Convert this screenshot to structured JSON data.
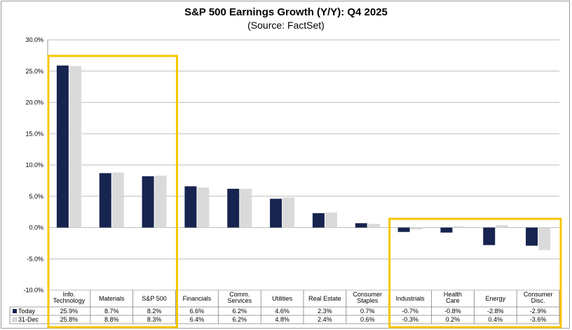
{
  "chart_data": {
    "type": "bar",
    "title": "S&P 500 Earnings Growth (Y/Y): Q4 2025",
    "subtitle": "(Source: FactSet)",
    "xlabel": "",
    "ylabel": "",
    "ylim": [
      -10,
      30
    ],
    "y_ticks": [
      30,
      25,
      20,
      15,
      10,
      5,
      0,
      -5,
      -10
    ],
    "y_tick_labels": [
      "30.0%",
      "25.0%",
      "20.0%",
      "15.0%",
      "10.0%",
      "5.0%",
      "0.0%",
      "-5.0%",
      "-10.0%"
    ],
    "grid": true,
    "categories": [
      [
        "Info.",
        "Technology"
      ],
      [
        "Materials"
      ],
      [
        "S&P 500"
      ],
      [
        "Financials"
      ],
      [
        "Comm.",
        "Services"
      ],
      [
        "Utilities"
      ],
      [
        "Real Estate"
      ],
      [
        "Consumer",
        "Staples"
      ],
      [
        "Industrials"
      ],
      [
        "Health",
        "Care"
      ],
      [
        "Energy"
      ],
      [
        "Consumer",
        "Disc."
      ]
    ],
    "series": [
      {
        "name": "Today",
        "color": "#17244f",
        "values": [
          25.9,
          8.7,
          8.2,
          6.6,
          6.2,
          4.6,
          2.3,
          0.7,
          -0.7,
          -0.8,
          -2.8,
          -2.9
        ],
        "labels": [
          "25.9%",
          "8.7%",
          "8.2%",
          "6.6%",
          "6.2%",
          "4.6%",
          "2.3%",
          "0.7%",
          "-0.7%",
          "-0.8%",
          "-2.8%",
          "-2.9%"
        ]
      },
      {
        "name": "31-Dec",
        "color": "#dadada",
        "values": [
          25.8,
          8.8,
          8.3,
          6.4,
          6.2,
          4.8,
          2.4,
          0.6,
          -0.3,
          0.2,
          0.4,
          -3.6
        ],
        "labels": [
          "25.8%",
          "8.8%",
          "8.3%",
          "6.4%",
          "6.2%",
          "4.8%",
          "2.4%",
          "0.6%",
          "-0.3%",
          "0.2%",
          "0.4%",
          "-3.6%"
        ]
      }
    ],
    "highlights": [
      {
        "from_category": 0,
        "to_category": 2,
        "color": "#f7c600"
      },
      {
        "from_category": 8,
        "to_category": 11,
        "color": "#f7c600"
      }
    ]
  }
}
